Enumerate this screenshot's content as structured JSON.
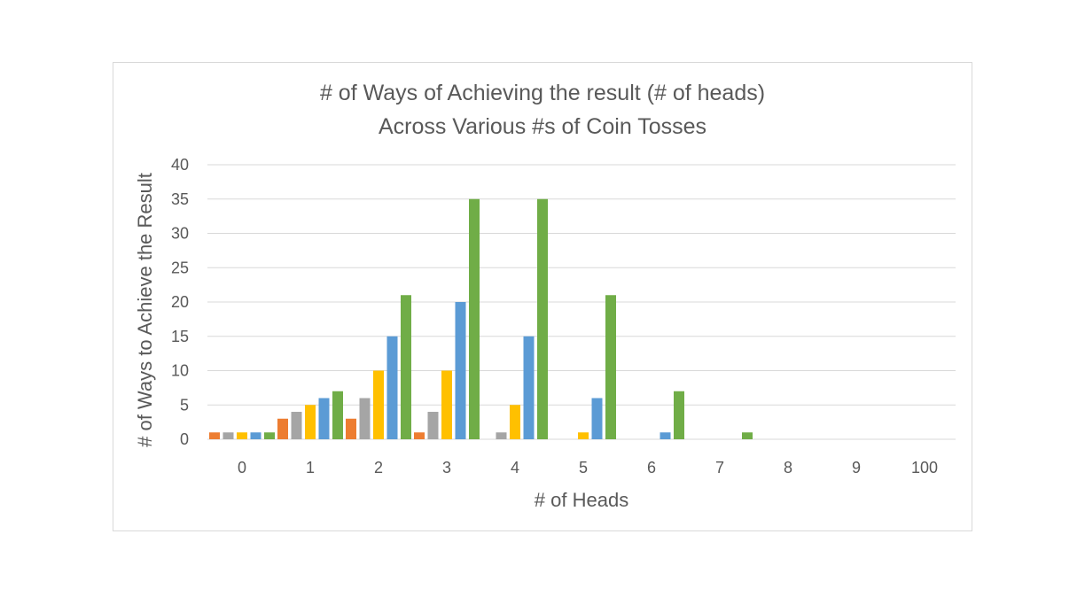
{
  "chart_data": {
    "type": "bar",
    "title": "# of Ways of Achieving the result (# of heads)",
    "subtitle": "Across Various #s of Coin Tosses",
    "xlabel": "# of Heads",
    "ylabel": "# of Ways to Achieve the Result",
    "categories": [
      "0",
      "1",
      "2",
      "3",
      "4",
      "5",
      "6",
      "7",
      "8",
      "9",
      "100"
    ],
    "ylim": [
      0,
      40
    ],
    "yticks": [
      0,
      5,
      10,
      15,
      20,
      25,
      30,
      35,
      40
    ],
    "grid": true,
    "series": [
      {
        "color": "#ed7d31",
        "values": [
          1,
          3,
          3,
          1,
          0,
          0,
          0,
          0,
          0,
          0,
          0
        ]
      },
      {
        "color": "#a5a5a5",
        "values": [
          1,
          4,
          6,
          4,
          1,
          0,
          0,
          0,
          0,
          0,
          0
        ]
      },
      {
        "color": "#ffc000",
        "values": [
          1,
          5,
          10,
          10,
          5,
          1,
          0,
          0,
          0,
          0,
          0
        ]
      },
      {
        "color": "#5b9bd5",
        "values": [
          1,
          6,
          15,
          20,
          15,
          6,
          1,
          0,
          0,
          0,
          0
        ]
      },
      {
        "color": "#70ad47",
        "values": [
          1,
          7,
          21,
          35,
          35,
          21,
          7,
          1,
          0,
          0,
          0
        ]
      }
    ]
  }
}
